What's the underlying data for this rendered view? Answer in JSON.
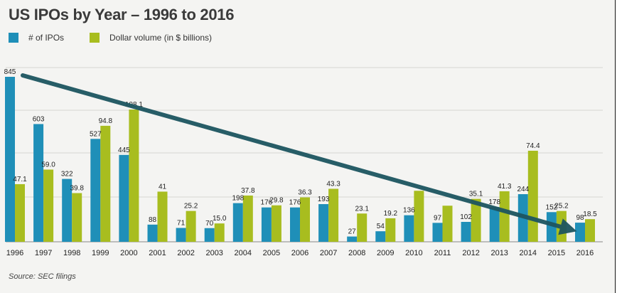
{
  "chart_data": {
    "type": "bar",
    "title": "US IPOs by Year – 1996 to 2016",
    "categories": [
      "1996",
      "1997",
      "1998",
      "1999",
      "2000",
      "2001",
      "2002",
      "2003",
      "2004",
      "2005",
      "2006",
      "2007",
      "2008",
      "2009",
      "2010",
      "2011",
      "2012",
      "2013",
      "2014",
      "2015",
      "2016"
    ],
    "series": [
      {
        "name": "# of IPOs",
        "color": "#1f8fb8",
        "values": [
          845,
          603,
          322,
          527,
          445,
          88,
          71,
          70,
          198,
          176,
          176,
          193,
          27,
          54,
          136,
          97,
          102,
          178,
          244,
          152,
          98
        ],
        "labels": [
          "845",
          "603",
          "322",
          "527",
          "445",
          "88",
          "71",
          "70",
          "198",
          "176",
          "176",
          "193",
          "27",
          "54",
          "136",
          "97",
          "102",
          "178",
          "244",
          "152",
          "98"
        ]
      },
      {
        "name": "Dollar volume (in $ billions)",
        "color": "#a8bd1f",
        "values": [
          47.1,
          59.0,
          39.8,
          94.8,
          108.1,
          41,
          25.2,
          15.0,
          37.8,
          29.8,
          36.3,
          43.3,
          23.1,
          19.2,
          41.7,
          29.5,
          35.1,
          41.3,
          74.4,
          25.2,
          18.5
        ],
        "labels": [
          "47.1",
          "59.0",
          "39.8",
          "94.8",
          "108.1",
          "41",
          "25.2",
          "15.0",
          "37.8",
          "29.8",
          "36.3",
          "43.3",
          "23.1",
          "19.2",
          "",
          "",
          "35.1",
          "41.3",
          "74.4",
          "25.2",
          "18.5"
        ]
      }
    ],
    "grid": true,
    "legend": "top-left",
    "annotation": {
      "type": "trend-arrow",
      "from": "1996",
      "to": "2016",
      "color": "#1d5560"
    }
  },
  "source": "Source: SEC filings"
}
